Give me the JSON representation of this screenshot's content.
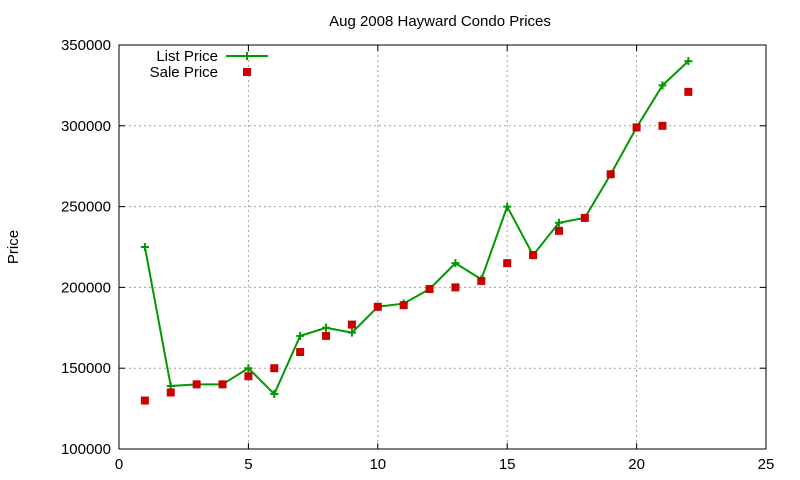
{
  "chart_data": {
    "type": "line",
    "title": "Aug 2008 Hayward Condo Prices",
    "xlabel": "",
    "ylabel": "Price",
    "xlim": [
      0,
      25
    ],
    "ylim": [
      100000,
      350000
    ],
    "xticks": [
      "0",
      "5",
      "10",
      "15",
      "20",
      "25"
    ],
    "yticks": [
      "100000",
      "150000",
      "200000",
      "250000",
      "300000",
      "350000"
    ],
    "grid": true,
    "legend_position": "top-left",
    "series": [
      {
        "name": "List Price",
        "style": "line-with-plus-markers",
        "color": "#009900",
        "x": [
          1,
          2,
          3,
          4,
          5,
          6,
          7,
          8,
          9,
          10,
          11,
          12,
          13,
          14,
          15,
          16,
          17,
          18,
          19,
          20,
          21,
          22
        ],
        "y": [
          225000,
          139000,
          140000,
          140000,
          150000,
          134000,
          170000,
          175000,
          172000,
          188000,
          190000,
          199000,
          215000,
          205000,
          250000,
          220000,
          240000,
          243000,
          270000,
          299000,
          325000,
          340000
        ]
      },
      {
        "name": "Sale Price",
        "style": "square-markers",
        "color": "#cc0000",
        "x": [
          1,
          2,
          3,
          4,
          5,
          6,
          7,
          8,
          9,
          10,
          11,
          12,
          13,
          14,
          15,
          16,
          17,
          18,
          19,
          20,
          21,
          22
        ],
        "y": [
          130000,
          135000,
          140000,
          140000,
          145000,
          150000,
          160000,
          170000,
          177000,
          188000,
          189000,
          199000,
          200000,
          204000,
          215000,
          220000,
          235000,
          243000,
          270000,
          299000,
          300000,
          321000
        ]
      }
    ]
  }
}
